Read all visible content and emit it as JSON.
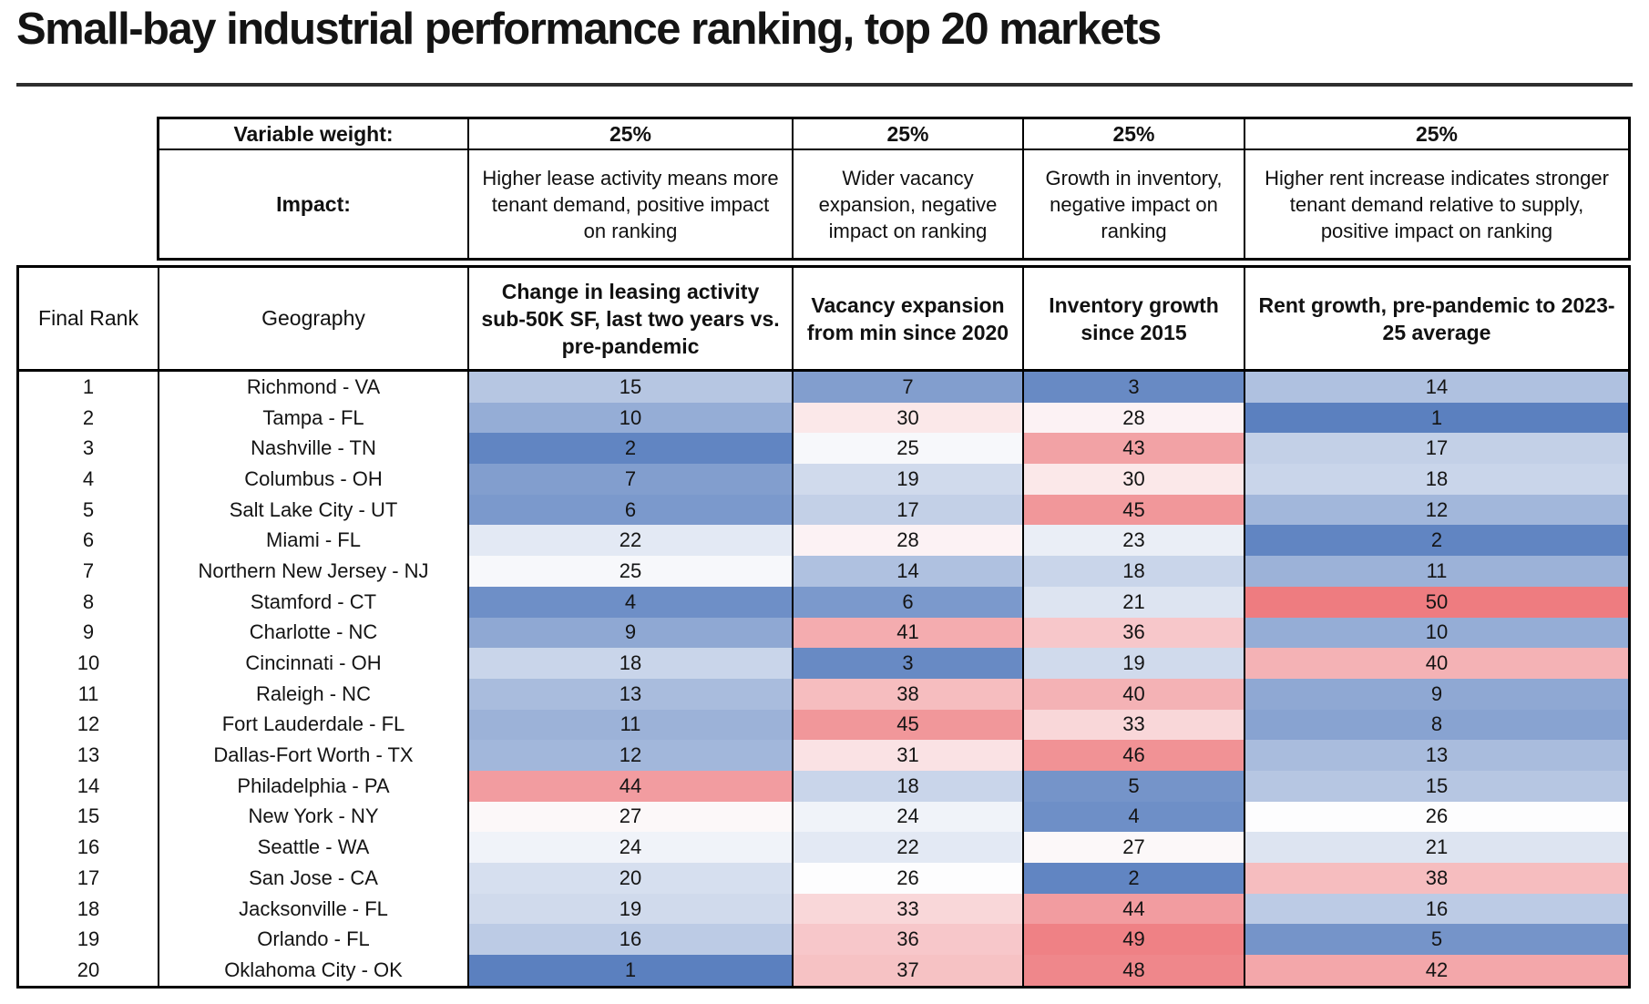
{
  "page": {
    "title": "Small-bay industrial performance ranking, top 20 markets"
  },
  "chart_data": {
    "type": "heatmap",
    "title": "Small-bay industrial performance ranking, top 20 markets",
    "variable_weight_label": "Variable weight:",
    "impact_label": "Impact:",
    "rank_column_label": "Final Rank",
    "geography_column_label": "Geography",
    "metric_columns": [
      {
        "weight": "25%",
        "impact": "Higher lease activity means more tenant demand, positive impact on ranking",
        "title": "Change in leasing activity sub-50K SF, last two years vs. pre-pandemic"
      },
      {
        "weight": "25%",
        "impact": "Wider vacancy expansion, negative impact on ranking",
        "title": "Vacancy expansion from min since 2020"
      },
      {
        "weight": "25%",
        "impact": "Growth in inventory, negative impact on ranking",
        "title": "Inventory growth since 2015"
      },
      {
        "weight": "25%",
        "impact": "Higher rent increase indicates stronger tenant demand relative to supply, positive impact on ranking",
        "title": "Rent growth, pre-pandemic to 2023-25 average"
      }
    ],
    "rows": [
      {
        "rank": 1,
        "geography": "Richmond - VA",
        "values": [
          15,
          7,
          3,
          14
        ]
      },
      {
        "rank": 2,
        "geography": "Tampa - FL",
        "values": [
          10,
          30,
          28,
          1
        ]
      },
      {
        "rank": 3,
        "geography": "Nashville - TN",
        "values": [
          2,
          25,
          43,
          17
        ]
      },
      {
        "rank": 4,
        "geography": "Columbus - OH",
        "values": [
          7,
          19,
          30,
          18
        ]
      },
      {
        "rank": 5,
        "geography": "Salt Lake City - UT",
        "values": [
          6,
          17,
          45,
          12
        ]
      },
      {
        "rank": 6,
        "geography": "Miami - FL",
        "values": [
          22,
          28,
          23,
          2
        ]
      },
      {
        "rank": 7,
        "geography": "Northern New Jersey - NJ",
        "values": [
          25,
          14,
          18,
          11
        ]
      },
      {
        "rank": 8,
        "geography": "Stamford - CT",
        "values": [
          4,
          6,
          21,
          50
        ]
      },
      {
        "rank": 9,
        "geography": "Charlotte - NC",
        "values": [
          9,
          41,
          36,
          10
        ]
      },
      {
        "rank": 10,
        "geography": "Cincinnati - OH",
        "values": [
          18,
          3,
          19,
          40
        ]
      },
      {
        "rank": 11,
        "geography": "Raleigh - NC",
        "values": [
          13,
          38,
          40,
          9
        ]
      },
      {
        "rank": 12,
        "geography": "Fort Lauderdale - FL",
        "values": [
          11,
          45,
          33,
          8
        ]
      },
      {
        "rank": 13,
        "geography": "Dallas-Fort Worth - TX",
        "values": [
          12,
          31,
          46,
          13
        ]
      },
      {
        "rank": 14,
        "geography": "Philadelphia - PA",
        "values": [
          44,
          18,
          5,
          15
        ]
      },
      {
        "rank": 15,
        "geography": "New York - NY",
        "values": [
          27,
          24,
          4,
          26
        ]
      },
      {
        "rank": 16,
        "geography": "Seattle - WA",
        "values": [
          24,
          22,
          27,
          21
        ]
      },
      {
        "rank": 17,
        "geography": "San Jose - CA",
        "values": [
          20,
          26,
          2,
          38
        ]
      },
      {
        "rank": 18,
        "geography": "Jacksonville - FL",
        "values": [
          19,
          33,
          44,
          16
        ]
      },
      {
        "rank": 19,
        "geography": "Orlando - FL",
        "values": [
          16,
          36,
          49,
          5
        ]
      },
      {
        "rank": 20,
        "geography": "Oklahoma City - OK",
        "values": [
          1,
          37,
          48,
          42
        ]
      }
    ],
    "color_scale": {
      "description": "diverging scale: low rank = blue (good), mid ~26 = white, high rank = red (bad)",
      "min": 1,
      "mid": 26,
      "max": 50,
      "min_color": "#5b80bf",
      "mid_color": "#fdfdfe",
      "max_color": "#ee7c80"
    }
  }
}
